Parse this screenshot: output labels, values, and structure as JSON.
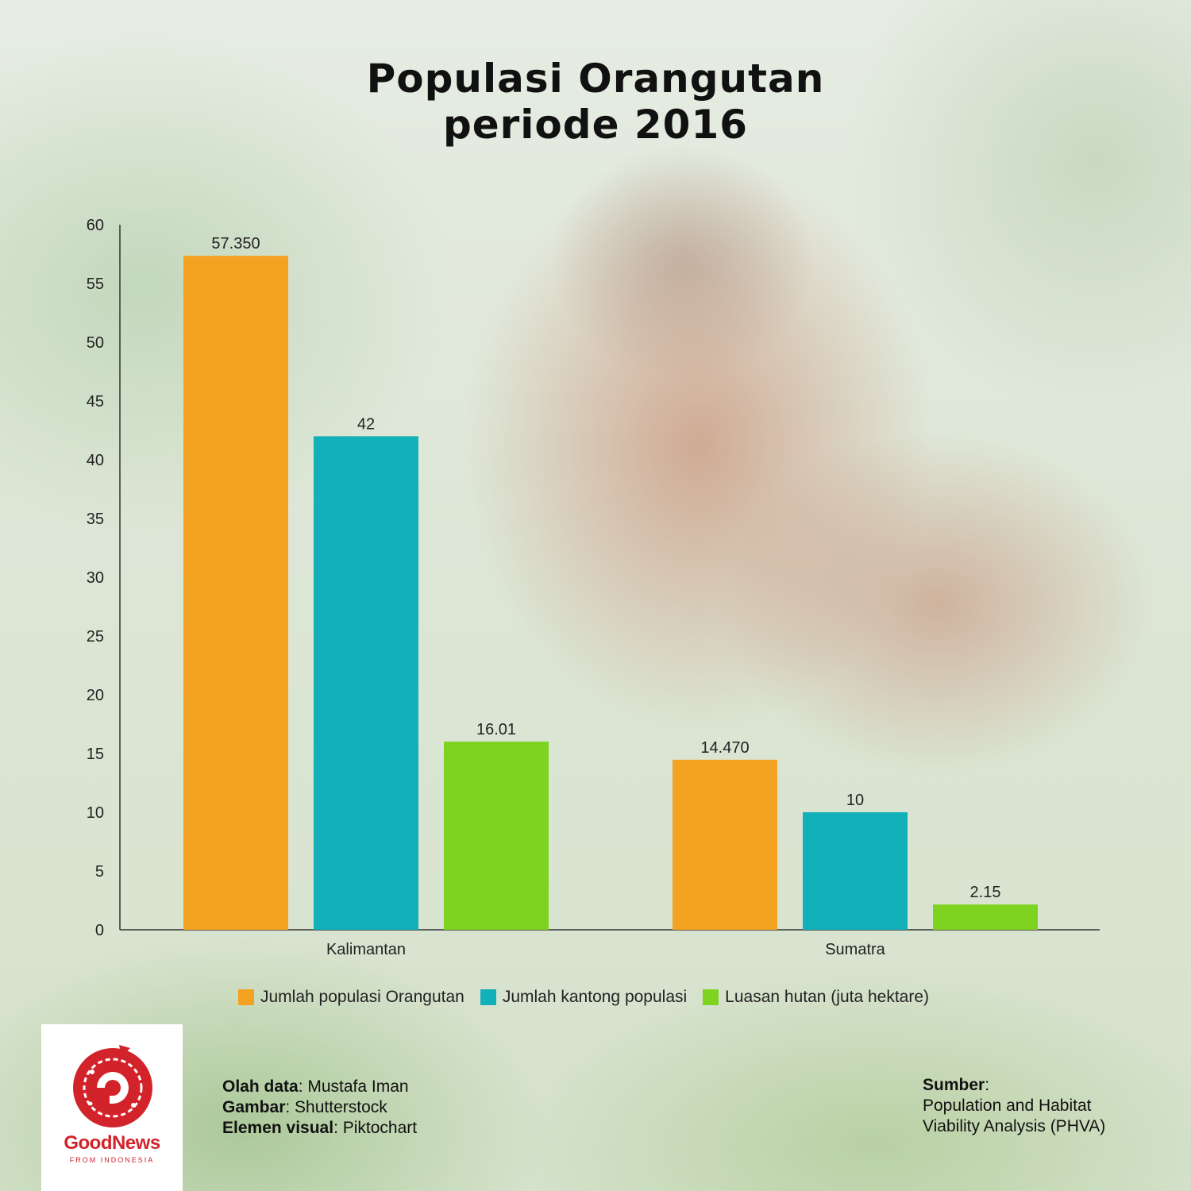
{
  "chart_data": {
    "type": "bar",
    "title_lines": [
      "Populasi Orangutan",
      "periode 2016"
    ],
    "categories": [
      "Kalimantan",
      "Sumatra"
    ],
    "series": [
      {
        "name": "Jumlah populasi Orangutan",
        "values": [
          57.35,
          14.47
        ],
        "labels": [
          "57.350",
          "14.470"
        ],
        "color": "#f4a221"
      },
      {
        "name": "Jumlah kantong populasi",
        "values": [
          42,
          10
        ],
        "labels": [
          "42",
          "10"
        ],
        "color": "#12b0b8"
      },
      {
        "name": "Luasan hutan (juta hektare)",
        "values": [
          16.01,
          2.15
        ],
        "labels": [
          "16.01",
          "2.15"
        ],
        "color": "#7ed321"
      }
    ],
    "yticks": [
      "0",
      "5",
      "10",
      "15",
      "20",
      "25",
      "30",
      "35",
      "40",
      "45",
      "50",
      "55",
      "60"
    ],
    "ylim": [
      0,
      60
    ],
    "xlabel": "",
    "ylabel": "",
    "grid": false,
    "legend_position": "bottom"
  },
  "logo": {
    "name": "GoodNews",
    "tagline": "FROM INDONESIA",
    "color": "#d2232a"
  },
  "credits": [
    {
      "key": "Olah data",
      "value": ": Mustafa Iman"
    },
    {
      "key": "Gambar",
      "value": ": Shutterstock"
    },
    {
      "key": "Elemen visual",
      "value": ": Piktochart"
    }
  ],
  "source": {
    "key": "Sumber",
    "colon": ":",
    "lines": [
      "Population and Habitat",
      "Viability Analysis (PHVA)"
    ]
  }
}
